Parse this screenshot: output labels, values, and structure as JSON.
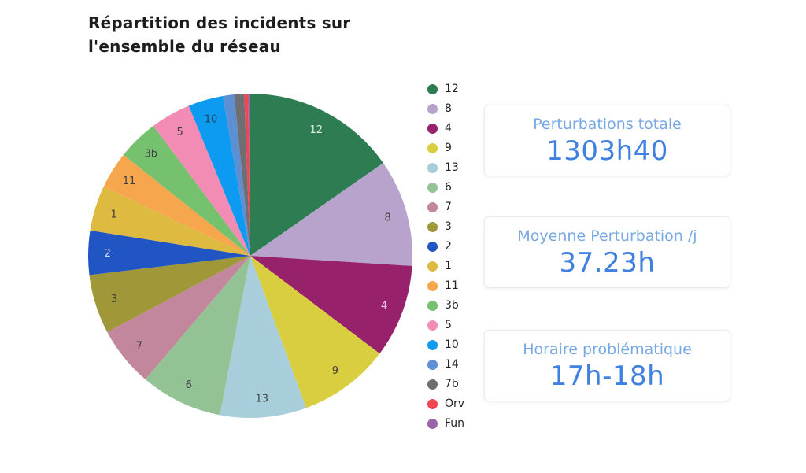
{
  "title": {
    "line1": "Répartition des incidents sur",
    "line2": "l'ensemble du réseau"
  },
  "chart_data": {
    "type": "pie",
    "title": "Répartition des incidents sur l'ensemble du réseau",
    "legend_position": "right",
    "direction": "clockwise",
    "start_angle_deg": 0,
    "values_are": "percent_share_estimated",
    "slices": [
      {
        "label": "12",
        "value": 15.3,
        "color": "#2e7d52",
        "label_color": "#e3ebe5",
        "show_label": true
      },
      {
        "label": "8",
        "value": 10.7,
        "color": "#b7a3cc",
        "label_color": "#3f3f41",
        "show_label": true
      },
      {
        "label": "4",
        "value": 9.3,
        "color": "#97216b",
        "label_color": "#eac4dc",
        "show_label": true
      },
      {
        "label": "9",
        "value": 9.1,
        "color": "#d8ce3f",
        "label_color": "#3f3f41",
        "show_label": true
      },
      {
        "label": "13",
        "value": 8.6,
        "color": "#a8cedc",
        "label_color": "#3f3f41",
        "show_label": true
      },
      {
        "label": "6",
        "value": 8.2,
        "color": "#93c295",
        "label_color": "#3f3f41",
        "show_label": true
      },
      {
        "label": "7",
        "value": 6.0,
        "color": "#c2879c",
        "label_color": "#3f3f41",
        "show_label": true
      },
      {
        "label": "3",
        "value": 5.9,
        "color": "#9f9738",
        "label_color": "#3f3f41",
        "show_label": true
      },
      {
        "label": "2",
        "value": 4.4,
        "color": "#2155c4",
        "label_color": "#d3dcf2",
        "show_label": true
      },
      {
        "label": "1",
        "value": 4.5,
        "color": "#dfba41",
        "label_color": "#3f3f41",
        "show_label": true
      },
      {
        "label": "11",
        "value": 3.7,
        "color": "#f6a74e",
        "label_color": "#3f3f41",
        "show_label": true
      },
      {
        "label": "3b",
        "value": 4.1,
        "color": "#76c16e",
        "label_color": "#3f3f41",
        "show_label": true
      },
      {
        "label": "5",
        "value": 4.0,
        "color": "#f28cb4",
        "label_color": "#3f3f41",
        "show_label": true
      },
      {
        "label": "10",
        "value": 3.5,
        "color": "#0d9bf2",
        "label_color": "#28415c",
        "show_label": true
      },
      {
        "label": "14",
        "value": 1.1,
        "color": "#5f8fd3",
        "label_color": "#3f3f41",
        "show_label": false
      },
      {
        "label": "7b",
        "value": 1.0,
        "color": "#6e6f72",
        "label_color": "#3f3f41",
        "show_label": false
      },
      {
        "label": "Orv",
        "value": 0.4,
        "color": "#ef4653",
        "label_color": "#3f3f41",
        "show_label": false
      },
      {
        "label": "Fun",
        "value": 0.2,
        "color": "#9c64a8",
        "label_color": "#3f3f41",
        "show_label": false
      }
    ]
  },
  "stats": [
    {
      "label": "Perturbations totale",
      "value": "1303h40"
    },
    {
      "label": "Moyenne Perturbation /j",
      "value": "37.23h"
    },
    {
      "label": "Horaire problématique",
      "value": "17h-18h"
    }
  ],
  "colors": {
    "stat_label": "#77a9e4",
    "stat_value": "#4080e0",
    "title": "#1d1d1f",
    "background": "#ffffff"
  }
}
